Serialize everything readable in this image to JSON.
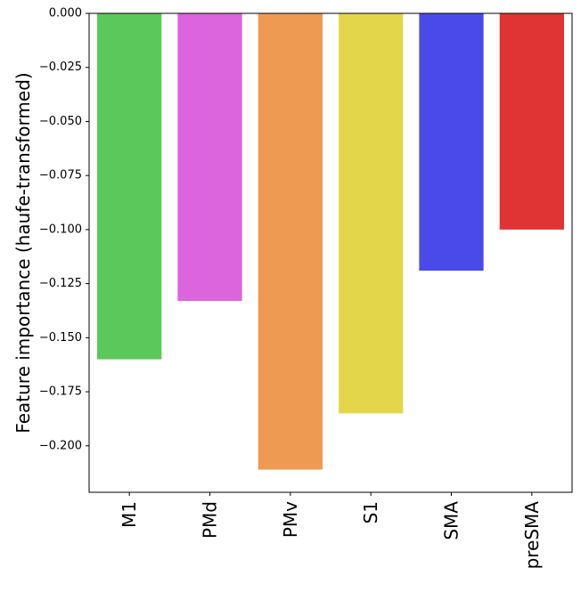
{
  "chart_data": {
    "type": "bar",
    "title": "",
    "xlabel": "",
    "ylabel": "Feature importance (haufe-transformed)",
    "categories": [
      "M1",
      "PMd",
      "PMv",
      "S1",
      "SMA",
      "preSMA"
    ],
    "values": [
      -0.16,
      -0.133,
      -0.211,
      -0.185,
      -0.119,
      -0.1
    ],
    "colors": [
      "#5ac85a",
      "#dc64dc",
      "#ee9a52",
      "#e4d64a",
      "#4a4aea",
      "#e03434"
    ],
    "ylim": [
      -0.2215,
      0.0
    ],
    "yticks": [
      0.0,
      -0.025,
      -0.05,
      -0.075,
      -0.1,
      -0.125,
      -0.15,
      -0.175,
      -0.2
    ],
    "ytick_labels": [
      "0.000",
      "−0.025",
      "−0.050",
      "−0.075",
      "−0.100",
      "−0.125",
      "−0.150",
      "−0.175",
      "−0.200"
    ],
    "grid": false,
    "legend": "none"
  }
}
